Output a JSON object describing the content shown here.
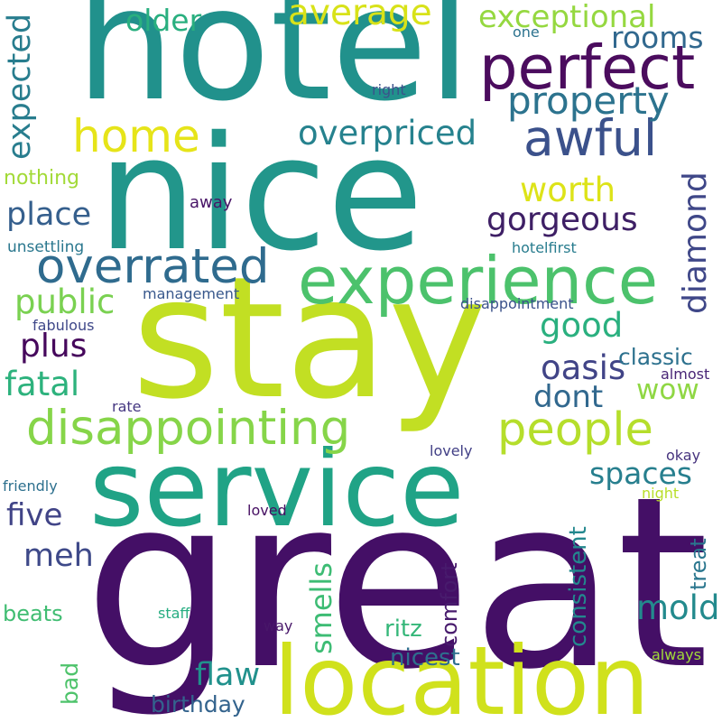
{
  "words": [
    {
      "text": "hotel",
      "color": "#21918c",
      "vertical": false
    },
    {
      "text": "nice",
      "color": "#22968b",
      "vertical": false
    },
    {
      "text": "stay",
      "color": "#c2df23",
      "vertical": false
    },
    {
      "text": "great",
      "color": "#440f66",
      "vertical": false
    },
    {
      "text": "service",
      "color": "#20a386",
      "vertical": false
    },
    {
      "text": "location",
      "color": "#d0e11c",
      "vertical": false
    },
    {
      "text": "experience",
      "color": "#4cc26c",
      "vertical": false
    },
    {
      "text": "disappointing",
      "color": "#86d549",
      "vertical": false
    },
    {
      "text": "perfect",
      "color": "#4b0c5e",
      "vertical": false
    },
    {
      "text": "overrated",
      "color": "#2f6b8e",
      "vertical": false
    },
    {
      "text": "awful",
      "color": "#3b518b",
      "vertical": false
    },
    {
      "text": "people",
      "color": "#b5de2b",
      "vertical": false
    },
    {
      "text": "home",
      "color": "#e6e419",
      "vertical": false
    },
    {
      "text": "property",
      "color": "#2c738e",
      "vertical": false
    },
    {
      "text": "overpriced",
      "color": "#26828e",
      "vertical": false
    },
    {
      "text": "average",
      "color": "#d8e219",
      "vertical": false
    },
    {
      "text": "exceptional",
      "color": "#95d840",
      "vertical": false
    },
    {
      "text": "gorgeous",
      "color": "#3e1f65",
      "vertical": false
    },
    {
      "text": "place",
      "color": "#355f8d",
      "vertical": false
    },
    {
      "text": "diamond",
      "color": "#3f4788",
      "vertical": true
    },
    {
      "text": "expected",
      "color": "#287d8e",
      "vertical": true
    },
    {
      "text": "older",
      "color": "#29af7f",
      "vertical": false
    },
    {
      "text": "rooms",
      "color": "#31688e",
      "vertical": false
    },
    {
      "text": "worth",
      "color": "#dde318",
      "vertical": false
    },
    {
      "text": "public",
      "color": "#7ad151",
      "vertical": false
    },
    {
      "text": "good",
      "color": "#2ab07f",
      "vertical": false
    },
    {
      "text": "plus",
      "color": "#46085c",
      "vertical": false
    },
    {
      "text": "oasis",
      "color": "#414487",
      "vertical": false
    },
    {
      "text": "fatal",
      "color": "#2db27d",
      "vertical": false
    },
    {
      "text": "dont",
      "color": "#31688e",
      "vertical": false
    },
    {
      "text": "wow",
      "color": "#8fd744",
      "vertical": false
    },
    {
      "text": "classic",
      "color": "#2d718e",
      "vertical": false
    },
    {
      "text": "spaces",
      "color": "#277f8e",
      "vertical": false
    },
    {
      "text": "five",
      "color": "#414487",
      "vertical": false
    },
    {
      "text": "meh",
      "color": "#3e4989",
      "vertical": false
    },
    {
      "text": "smells",
      "color": "#3dbc74",
      "vertical": true
    },
    {
      "text": "consistent",
      "color": "#23888e",
      "vertical": true
    },
    {
      "text": "mold",
      "color": "#238a8d",
      "vertical": false
    },
    {
      "text": "comfort",
      "color": "#481b6d",
      "vertical": true
    },
    {
      "text": "treat",
      "color": "#2a768e",
      "vertical": true
    },
    {
      "text": "ritz",
      "color": "#35b779",
      "vertical": false
    },
    {
      "text": "flaw",
      "color": "#21918c",
      "vertical": false
    },
    {
      "text": "nicest",
      "color": "#2e6f8e",
      "vertical": false
    },
    {
      "text": "bad",
      "color": "#4ec36b",
      "vertical": true
    },
    {
      "text": "beats",
      "color": "#40bd72",
      "vertical": false
    },
    {
      "text": "birthday",
      "color": "#33638d",
      "vertical": false
    },
    {
      "text": "nothing",
      "color": "#a2da37",
      "vertical": false
    },
    {
      "text": "one",
      "color": "#2c728e",
      "vertical": false
    },
    {
      "text": "right",
      "color": "#3b528b",
      "vertical": false
    },
    {
      "text": "away",
      "color": "#481467",
      "vertical": false
    },
    {
      "text": "hotelfirst",
      "color": "#287c8e",
      "vertical": false
    },
    {
      "text": "unsettling",
      "color": "#2a778e",
      "vertical": false
    },
    {
      "text": "management",
      "color": "#38588c",
      "vertical": false
    },
    {
      "text": "disappointment",
      "color": "#3b528b",
      "vertical": false
    },
    {
      "text": "fabulous",
      "color": "#3f4889",
      "vertical": false
    },
    {
      "text": "almost",
      "color": "#482576",
      "vertical": false
    },
    {
      "text": "rate",
      "color": "#453781",
      "vertical": false
    },
    {
      "text": "lovely",
      "color": "#424086",
      "vertical": false
    },
    {
      "text": "okay",
      "color": "#46337e",
      "vertical": false
    },
    {
      "text": "friendly",
      "color": "#2d708e",
      "vertical": false
    },
    {
      "text": "night",
      "color": "#b8de29",
      "vertical": false
    },
    {
      "text": "loved",
      "color": "#471063",
      "vertical": false
    },
    {
      "text": "staff",
      "color": "#26ad81",
      "vertical": false
    },
    {
      "text": "way",
      "color": "#481769",
      "vertical": false
    },
    {
      "text": "always",
      "color": "#a0da39",
      "vertical": false
    }
  ]
}
